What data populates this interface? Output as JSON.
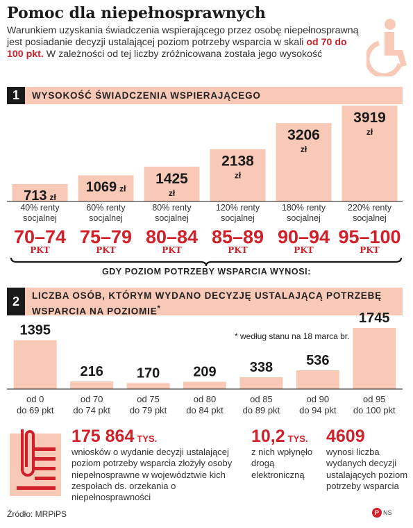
{
  "title": "Pomoc dla niepełnosprawnych",
  "intro": {
    "part1": "Warunkiem uzyskania świadczenia wspierającego przez osobę niepełnosprawną jest posiadanie decyzji ustalającej poziom potrzeby wsparcia w skali",
    "highlight": "od 70 do 100 pkt.",
    "part2": "W zależności od tej liczby zróżnicowana została jego wysokość"
  },
  "section1": {
    "number": "1",
    "title": "Wysokość świadczenia wspierającego"
  },
  "section2": {
    "number": "2",
    "title_line1": "Liczba osób, którym wydano decyzję ustalającą potrzebę",
    "title_line2": "wsparcia na poziomie",
    "title_mark": "*"
  },
  "brace_label": "GDY POZIOM POTRZEBY WSPARCIA WYNOSI:",
  "footnote": "* według stanu na 18 marca br.",
  "stats": [
    {
      "value": "175 864",
      "unit": "TYS.",
      "text": "wniosków o wydanie decyzji ustalającej poziom potrzeby wsparcia złożyły osoby niepełnosprawne w województwie kich zespołach ds. orzekania o niepełnosprawności"
    },
    {
      "value": "10,2",
      "unit": "TYS.",
      "text": "z nich wpłynęło drogą elektroniczną"
    },
    {
      "value": "4609",
      "unit": "",
      "text": "wynosi liczba wydanych decyzji ustalających poziom potrzeby wsparcia"
    }
  ],
  "source": "Źródło: MRPiPS",
  "logo": {
    "mark": "P",
    "initials": "NS"
  },
  "icons": [
    "wheelchair-icon",
    "document-clip-icon"
  ],
  "colors": {
    "bar": "#f9c9b7",
    "accent": "#d0202a",
    "dark": "#1a1a1a"
  },
  "chart_data": [
    {
      "type": "bar",
      "title": "Wysokość świadczenia wspierającego",
      "categories": [
        "70–74",
        "75–79",
        "80–84",
        "85–89",
        "90–94",
        "95–100"
      ],
      "category_unit": "PKT",
      "values": [
        713,
        1069,
        1425,
        2138,
        3206,
        3919
      ],
      "value_unit": "zł",
      "sublabels": [
        [
          "40% renty",
          "socjalnej"
        ],
        [
          "60% renty",
          "socjalnej"
        ],
        [
          "80% renty",
          "socjalnej"
        ],
        [
          "120% renty",
          "socjalnej"
        ],
        [
          "180% renty",
          "socjalnej"
        ],
        [
          "220% renty",
          "socjalnej"
        ]
      ],
      "xlabel": "GDY POZIOM POTRZEBY WSPARCIA WYNOSI:",
      "ylabel": "",
      "ylim": [
        0,
        3919
      ],
      "grid": false
    },
    {
      "type": "bar",
      "title": "Liczba osób, którym wydano decyzję ustalającą potrzebę wsparcia na poziomie*",
      "categories": [
        [
          "od 0",
          "do 69 pkt"
        ],
        [
          "od 70",
          "do 74 pkt"
        ],
        [
          "od 75",
          "do 79 pkt"
        ],
        [
          "od 80",
          "do 84 pkt"
        ],
        [
          "od 85",
          "do 89 pkt"
        ],
        [
          "od 90",
          "do 94 pkt"
        ],
        [
          "od 95",
          "do 100 pkt"
        ]
      ],
      "values": [
        1395,
        216,
        170,
        209,
        338,
        536,
        1745
      ],
      "xlabel": "",
      "ylabel": "",
      "ylim": [
        0,
        1745
      ],
      "grid": false
    }
  ]
}
